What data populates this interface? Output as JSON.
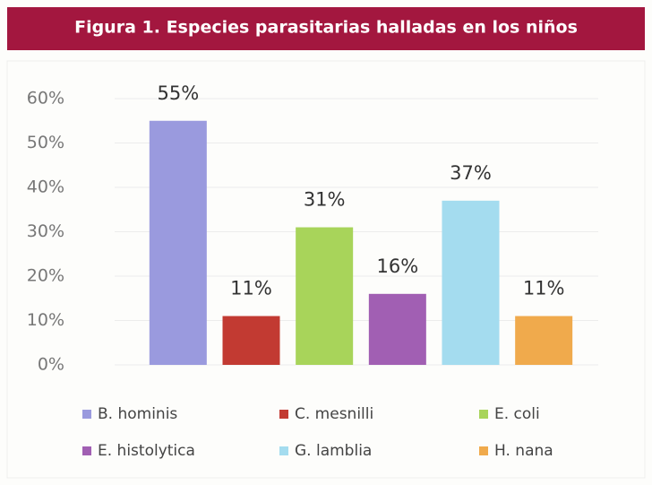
{
  "chart_data": {
    "type": "bar",
    "title": "Figura 1. Especies parasitarias halladas en los niños",
    "categories": [
      "B. hominis",
      "C. mesnilli",
      "E. coli",
      "E. histolytica",
      "G. lamblia",
      "H. nana"
    ],
    "values": [
      55,
      11,
      31,
      16,
      37,
      11
    ],
    "value_labels": [
      "55%",
      "11%",
      "31%",
      "16%",
      "37%",
      "11%"
    ],
    "colors": [
      "#9a9ade",
      "#c23a32",
      "#a8d45a",
      "#a15fb3",
      "#a4dcef",
      "#f0aa4c"
    ],
    "ylim": [
      0,
      60
    ],
    "yticks": [
      {
        "value": 0,
        "label": "0%"
      },
      {
        "value": 10,
        "label": "10%"
      },
      {
        "value": 20,
        "label": "20%"
      },
      {
        "value": 30,
        "label": "30%"
      },
      {
        "value": 40,
        "label": "40%"
      },
      {
        "value": 50,
        "label": "50%"
      },
      {
        "value": 60,
        "label": "60%"
      }
    ],
    "grid": true
  }
}
